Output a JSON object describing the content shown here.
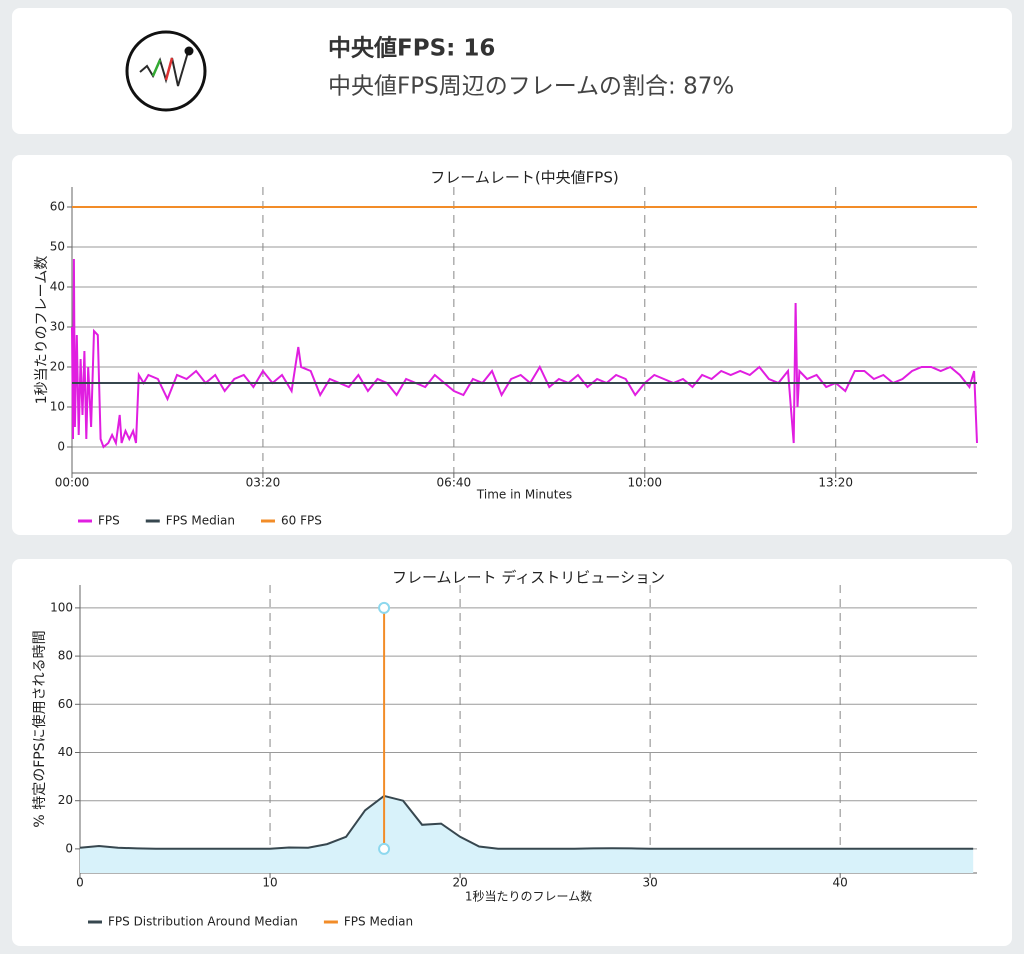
{
  "header": {
    "median": "中央値FPS: 16",
    "share": "中央値FPS周辺のフレームの割合: 87%"
  },
  "chart_data": [
    {
      "type": "line",
      "title": "フレームレート(中央値FPS)",
      "x_label": "Time in Minutes",
      "y_label": "1秒当たりのフレーム数",
      "xlim": [
        0,
        948
      ],
      "xticks": [
        {
          "value": 0,
          "label": "00:00"
        },
        {
          "value": 200,
          "label": "03:20"
        },
        {
          "value": 400,
          "label": "06:40"
        },
        {
          "value": 600,
          "label": "10:00"
        },
        {
          "value": 800,
          "label": "13:20"
        }
      ],
      "ylim": [
        -6.5,
        65
      ],
      "yticks": [
        0,
        10,
        20,
        30,
        40,
        50,
        60
      ],
      "grid": true,
      "series": [
        {
          "name": "FPS",
          "color": "#e01ee0",
          "x": [
            0,
            1,
            2,
            3,
            5,
            7,
            9,
            11,
            13,
            15,
            17,
            20,
            23,
            27,
            30,
            33,
            38,
            42,
            46,
            50,
            52,
            56,
            60,
            64,
            67,
            70,
            75,
            80,
            90,
            100,
            110,
            120,
            130,
            140,
            150,
            160,
            170,
            180,
            190,
            200,
            210,
            220,
            230,
            237,
            240,
            250,
            260,
            270,
            280,
            290,
            300,
            310,
            320,
            330,
            340,
            350,
            360,
            370,
            380,
            390,
            400,
            410,
            420,
            430,
            440,
            450,
            460,
            470,
            480,
            490,
            500,
            510,
            520,
            530,
            540,
            550,
            560,
            570,
            580,
            590,
            600,
            610,
            620,
            630,
            640,
            650,
            660,
            670,
            680,
            690,
            700,
            710,
            720,
            730,
            740,
            750,
            756,
            758,
            760,
            762,
            770,
            780,
            790,
            800,
            810,
            820,
            830,
            840,
            850,
            860,
            870,
            880,
            890,
            900,
            910,
            920,
            930,
            940,
            945,
            948
          ],
          "values": [
            30,
            2,
            47,
            5,
            28,
            3,
            22,
            8,
            24,
            2,
            20,
            5,
            29,
            28,
            2,
            0,
            1,
            3,
            1,
            8,
            1,
            4,
            2,
            4,
            1,
            18,
            16,
            18,
            17,
            12,
            18,
            17,
            19,
            16,
            18,
            14,
            17,
            18,
            15,
            19,
            16,
            18,
            14,
            25,
            20,
            19,
            13,
            17,
            16,
            15,
            18,
            14,
            17,
            16,
            13,
            17,
            16,
            15,
            18,
            16,
            14,
            13,
            17,
            16,
            19,
            13,
            17,
            18,
            16,
            20,
            15,
            17,
            16,
            18,
            15,
            17,
            16,
            18,
            17,
            13,
            16,
            18,
            17,
            16,
            17,
            15,
            18,
            17,
            19,
            18,
            19,
            18,
            20,
            17,
            16,
            19,
            1,
            36,
            10,
            19,
            17,
            18,
            15,
            16,
            14,
            19,
            19,
            17,
            18,
            16,
            17,
            19,
            20,
            20,
            19,
            20,
            18,
            15,
            19,
            1
          ]
        },
        {
          "name": "FPS Median",
          "color": "#37474f",
          "x": [
            0,
            948
          ],
          "values": [
            16,
            16
          ]
        },
        {
          "name": "60 FPS",
          "color": "#f28c28",
          "x": [
            0,
            948
          ],
          "values": [
            60,
            60
          ]
        }
      ]
    },
    {
      "type": "line",
      "title": "フレームレート ディストリビューション",
      "x_label": "1秒当たりのフレーム数",
      "y_label": "% 特定のFPSに使用される時間",
      "xlim": [
        0,
        47.2
      ],
      "xticks": [
        0,
        10,
        20,
        30,
        40
      ],
      "ylim": [
        -10,
        109.5
      ],
      "yticks": [
        0,
        20,
        40,
        60,
        80,
        100
      ],
      "grid": true,
      "series": [
        {
          "name": "FPS Distribution Around Median",
          "color": "#37474f",
          "fill": "#d8f2fa",
          "x": [
            0,
            1,
            2,
            3,
            4,
            5,
            6,
            7,
            8,
            9,
            10,
            11,
            12,
            13,
            14,
            15,
            16,
            17,
            18,
            19,
            20,
            21,
            22,
            23,
            24,
            25,
            26,
            27,
            28,
            29,
            30,
            31,
            32,
            33,
            34,
            35,
            36,
            37,
            38,
            39,
            40,
            41,
            42,
            43,
            44,
            45,
            46,
            47
          ],
          "values": [
            0.5,
            1.2,
            0.5,
            0.2,
            0.1,
            0.1,
            0.1,
            0.1,
            0.1,
            0.1,
            0.1,
            0.6,
            0.5,
            2,
            5,
            16,
            22,
            20,
            10,
            10.5,
            5,
            1,
            0.1,
            0.1,
            0.1,
            0.1,
            0.1,
            0.2,
            0.3,
            0.2,
            0.1,
            0.1,
            0.1,
            0.1,
            0.1,
            0.1,
            0.1,
            0.1,
            0.1,
            0.1,
            0.1,
            0.1,
            0.1,
            0.1,
            0.1,
            0.1,
            0.1,
            0.1
          ]
        },
        {
          "name": "FPS Median",
          "color": "#f28c28",
          "x": [
            16,
            16
          ],
          "values": [
            0,
            100
          ],
          "markers": true,
          "marker_color": "#8dd8ee"
        }
      ]
    }
  ]
}
